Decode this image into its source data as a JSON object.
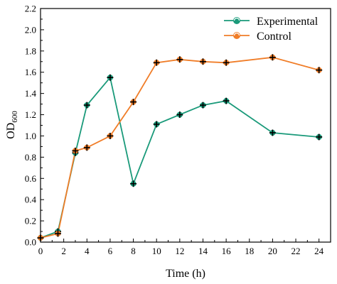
{
  "chart_data": {
    "type": "line",
    "xlabel": "Time (h)",
    "ylabel": {
      "main": "OD",
      "sub": "600"
    },
    "xlim": [
      0,
      25
    ],
    "ylim": [
      0,
      2.2
    ],
    "xticks": [
      "0",
      "2",
      "4",
      "6",
      "8",
      "10",
      "12",
      "14",
      "16",
      "18",
      "20",
      "22",
      "24"
    ],
    "yticks": [
      "0.0",
      "0.2",
      "0.4",
      "0.6",
      "0.8",
      "1.0",
      "1.2",
      "1.4",
      "1.6",
      "1.8",
      "2.0",
      "2.2"
    ],
    "legend_position": "top-right",
    "series": [
      {
        "name": "Experimental",
        "color": "#1a9a7a",
        "x": [
          0,
          1.5,
          3,
          4,
          6,
          8,
          10,
          12,
          14,
          16,
          20,
          24
        ],
        "y": [
          0.04,
          0.1,
          0.84,
          1.29,
          1.55,
          0.55,
          1.11,
          1.2,
          1.29,
          1.33,
          1.03,
          0.99
        ]
      },
      {
        "name": "Control",
        "color": "#f07d28",
        "x": [
          0,
          1.5,
          3,
          4,
          6,
          8,
          10,
          12,
          14,
          16,
          20,
          24
        ],
        "y": [
          0.04,
          0.08,
          0.86,
          0.89,
          1.0,
          1.32,
          1.69,
          1.72,
          1.7,
          1.69,
          1.74,
          1.62
        ]
      }
    ]
  }
}
